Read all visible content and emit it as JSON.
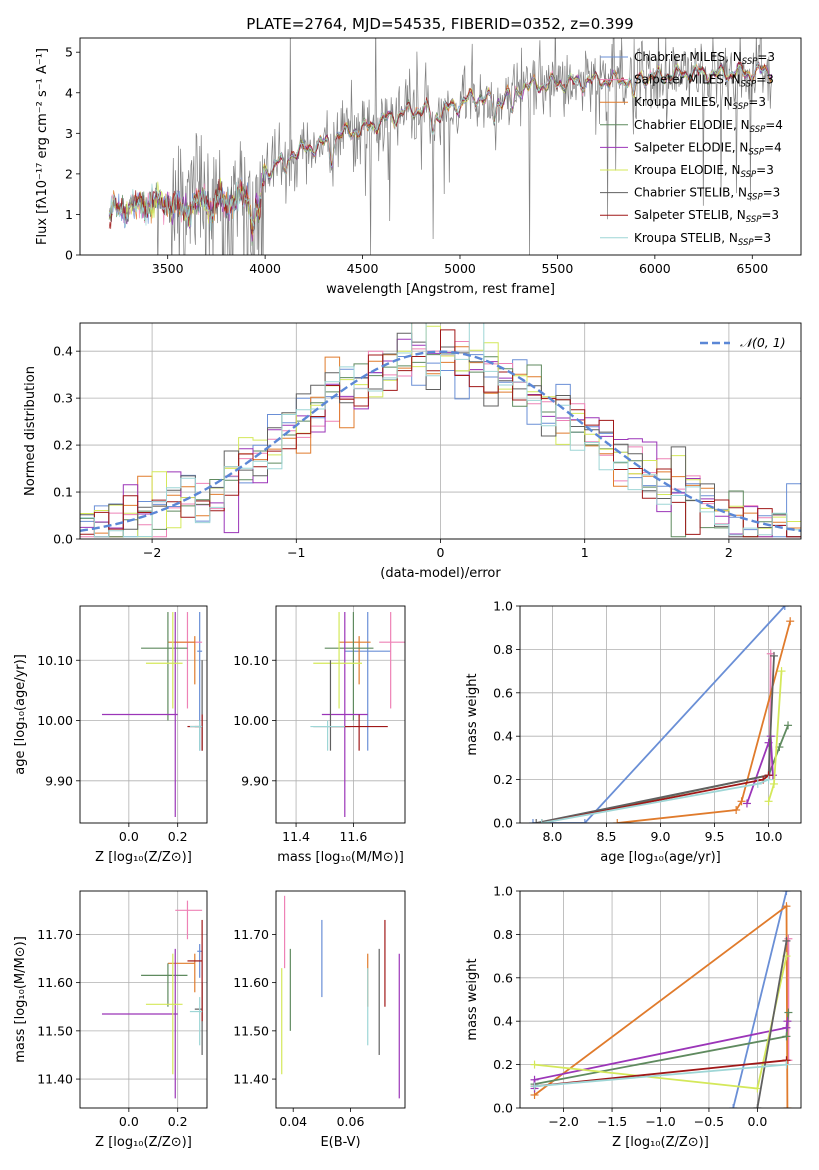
{
  "figure_title": "PLATE=2764, MJD=54535, FIBERID=0352, z=0.399",
  "colors": {
    "Chabrier MILES": "#6a8fd6",
    "Salpeter MILES": "#ee82b6",
    "Kroupa MILES": "#e07b2c",
    "Chabrier ELODIE": "#5f8a5f",
    "Salpeter ELODIE": "#9b35b8",
    "Kroupa ELODIE": "#d4e85a",
    "Chabrier STELIB": "#606060",
    "Salpeter STELIB": "#a01818",
    "Kroupa STELIB": "#9ed6d6",
    "data": "#808080",
    "gaussian": "#5b87d6"
  },
  "chart_data": [
    {
      "id": "spectrum",
      "type": "line",
      "title": "",
      "xlabel": "wavelength [Angstrom, rest frame]",
      "ylabel": "Flux [fλ10⁻¹⁷ erg cm⁻² s⁻¹ A⁻¹]",
      "xlim": [
        3050,
        6750
      ],
      "ylim": [
        0,
        5.35
      ],
      "xticks": [
        3500,
        4000,
        4500,
        5000,
        5500,
        6000,
        6500
      ],
      "yticks": [
        0,
        1,
        2,
        3,
        4,
        5
      ],
      "legend_placement": "top-right",
      "legend": [
        "Chabrier MILES, N_SSP=3",
        "Salpeter MILES, N_SSP=3",
        "Kroupa MILES, N_SSP=3",
        "Chabrier ELODIE, N_SSP=4",
        "Salpeter ELODIE, N_SSP=4",
        "Kroupa ELODIE, N_SSP=3",
        "Chabrier STELIB, N_SSP=3",
        "Salpeter STELIB, N_SSP=3",
        "Kroupa STELIB, N_SSP=3"
      ],
      "data_range": [
        3200,
        6600
      ],
      "continuum": [
        [
          3200,
          1.05
        ],
        [
          3300,
          1.2
        ],
        [
          3400,
          1.25
        ],
        [
          3500,
          1.3
        ],
        [
          3600,
          1.1
        ],
        [
          3700,
          1.45
        ],
        [
          3800,
          1.3
        ],
        [
          3900,
          1.4
        ],
        [
          3950,
          1.2
        ],
        [
          4000,
          2.0
        ],
        [
          4100,
          2.45
        ],
        [
          4200,
          2.6
        ],
        [
          4300,
          2.75
        ],
        [
          4400,
          3.0
        ],
        [
          4500,
          3.1
        ],
        [
          4600,
          3.3
        ],
        [
          4700,
          3.5
        ],
        [
          4800,
          3.6
        ],
        [
          4900,
          3.5
        ],
        [
          5000,
          3.75
        ],
        [
          5100,
          3.9
        ],
        [
          5200,
          3.8
        ],
        [
          5300,
          4.1
        ],
        [
          5400,
          4.2
        ],
        [
          5500,
          4.25
        ],
        [
          5600,
          4.25
        ],
        [
          5700,
          4.3
        ],
        [
          5800,
          4.3
        ],
        [
          5900,
          4.35
        ],
        [
          6000,
          4.4
        ],
        [
          6100,
          4.45
        ],
        [
          6200,
          4.5
        ],
        [
          6300,
          4.45
        ],
        [
          6400,
          4.5
        ],
        [
          6500,
          4.5
        ],
        [
          6600,
          4.55
        ]
      ]
    },
    {
      "id": "residuals",
      "type": "histogram",
      "xlabel": "(data-model)/error",
      "ylabel": "Normed distribution",
      "xlim": [
        -2.5,
        2.5
      ],
      "ylim": [
        0,
        0.46
      ],
      "xticks": [
        -2,
        -1,
        0,
        1,
        2
      ],
      "yticks": [
        0.0,
        0.1,
        0.2,
        0.3,
        0.4
      ],
      "grid": true,
      "legend_placement": "top-right",
      "legend": [
        "𝒩(0, 1)"
      ],
      "bin_width": 0.1
    },
    {
      "id": "age_vs_Z",
      "type": "errorbar",
      "xlabel": "Z [log₁₀(Z/Z⊙)]",
      "ylabel": "age  [log₁₀(age/yr)]",
      "xlim": [
        -0.2,
        0.32
      ],
      "ylim": [
        9.83,
        10.19
      ],
      "xticks": [
        0.0,
        0.2
      ],
      "yticks": [
        9.9,
        10.0,
        10.1
      ],
      "grid": true
    },
    {
      "id": "age_vs_mass",
      "type": "errorbar",
      "xlabel": "mass [log₁₀(M/M⊙)]",
      "ylabel": "",
      "xlim": [
        11.33,
        11.78
      ],
      "ylim": [
        9.83,
        10.19
      ],
      "xticks": [
        11.4,
        11.6
      ],
      "yticks": [
        9.9,
        10.0,
        10.1
      ],
      "grid": true
    },
    {
      "id": "massweight_vs_age",
      "type": "line",
      "xlabel": "age  [log₁₀(age/yr)]",
      "ylabel": "mass weight",
      "xlim": [
        7.7,
        10.3
      ],
      "ylim": [
        0,
        1.0
      ],
      "xticks": [
        8.0,
        8.5,
        9.0,
        9.5,
        10.0
      ],
      "yticks": [
        0.0,
        0.2,
        0.4,
        0.6,
        0.8,
        1.0
      ],
      "grid": true
    },
    {
      "id": "mass_vs_Z",
      "type": "errorbar",
      "xlabel": "Z [log₁₀(Z/Z⊙)]",
      "ylabel": "mass [log₁₀(M/M⊙)]",
      "xlim": [
        -0.2,
        0.32
      ],
      "ylim": [
        11.34,
        11.79
      ],
      "xticks": [
        0.0,
        0.2
      ],
      "yticks": [
        11.4,
        11.5,
        11.6,
        11.7
      ],
      "grid": true
    },
    {
      "id": "mass_vs_ebv",
      "type": "errorbar",
      "xlabel": "E(B-V)",
      "ylabel": "",
      "xlim": [
        0.034,
        0.079
      ],
      "ylim": [
        11.34,
        11.79
      ],
      "xticks": [
        0.04,
        0.06
      ],
      "yticks": [
        11.4,
        11.5,
        11.6,
        11.7
      ],
      "grid": false
    },
    {
      "id": "massweight_vs_Z",
      "type": "line",
      "xlabel": "Z [log₁₀(Z/Z⊙)]",
      "ylabel": "mass weight",
      "xlim": [
        -2.45,
        0.45
      ],
      "ylim": [
        0,
        1.0
      ],
      "xticks": [
        -2.0,
        -1.5,
        -1.0,
        -0.5,
        0.0
      ],
      "yticks": [
        0.0,
        0.2,
        0.4,
        0.6,
        0.8,
        1.0
      ],
      "grid": true
    }
  ],
  "models": [
    {
      "key": "Chabrier MILES",
      "Z": 0.29,
      "Zerr": [
        0.28,
        0.3
      ],
      "age": 10.115,
      "ageerr": [
        9.95,
        10.18
      ],
      "mass": 11.65,
      "masserr": [
        11.57,
        11.73
      ],
      "mass_t": [
        11.61,
        11.68
      ],
      "ebv": 0.05,
      "ebverr": [
        11.57,
        11.73
      ],
      "mw_age": [
        [
          7.82,
          0.0
        ],
        [
          8.3,
          0.0
        ],
        [
          10.15,
          1.0
        ]
      ],
      "mw_Z": [
        [
          -0.25,
          0.0
        ],
        [
          0.3,
          1.0
        ]
      ]
    },
    {
      "key": "Salpeter MILES",
      "Z": 0.24,
      "Zerr": [
        0.19,
        0.3
      ],
      "age": 10.13,
      "ageerr": [
        10.02,
        10.18
      ],
      "mass": 11.73,
      "masserr": [
        11.69,
        11.78
      ],
      "mass_t": [
        11.69,
        11.77
      ],
      "ebv": 0.037,
      "ebverr": [
        11.63,
        11.78
      ],
      "mw_age": [
        [
          10.01,
          0.22
        ],
        [
          10.02,
          0.78
        ]
      ],
      "mw_Z": [
        [
          0.32,
          0.22
        ],
        [
          0.32,
          0.78
        ]
      ]
    },
    {
      "key": "Kroupa MILES",
      "Z": 0.27,
      "Zerr": [
        0.16,
        0.27
      ],
      "age": 10.13,
      "ageerr": [
        10.06,
        10.14
      ],
      "mass": 11.62,
      "masserr": [
        11.55,
        11.66
      ],
      "mass_t": [
        11.58,
        11.66
      ],
      "ebv": 0.066,
      "ebverr": [
        11.55,
        11.66
      ],
      "mw_age": [
        [
          8.6,
          0.0
        ],
        [
          9.7,
          0.06
        ],
        [
          9.75,
          0.1
        ],
        [
          10.2,
          0.93
        ]
      ],
      "mw_Z": [
        [
          -2.3,
          0.06
        ],
        [
          0.3,
          0.93
        ],
        [
          0.31,
          0.0
        ]
      ]
    },
    {
      "key": "Chabrier ELODIE",
      "Z": 0.16,
      "Zerr": [
        0.05,
        0.24
      ],
      "age": 10.12,
      "ageerr": [
        10.0,
        10.18
      ],
      "mass": 11.6,
      "masserr": [
        11.5,
        11.67
      ],
      "mass_t": [
        11.55,
        11.64
      ],
      "ebv": 0.039,
      "ebverr": [
        11.5,
        11.67
      ],
      "mw_age": [
        [
          7.9,
          0.0
        ],
        [
          10.0,
          0.22
        ],
        [
          10.1,
          0.35
        ],
        [
          10.18,
          0.45
        ]
      ],
      "mw_Z": [
        [
          -2.3,
          0.11
        ],
        [
          0.3,
          0.33
        ],
        [
          0.32,
          0.44
        ]
      ]
    },
    {
      "key": "Salpeter ELODIE",
      "Z": 0.19,
      "Zerr": [
        -0.11,
        0.2
      ],
      "age": 10.01,
      "ageerr": [
        9.84,
        10.18
      ],
      "mass": 11.57,
      "masserr": [
        11.49,
        11.65
      ],
      "mass_t": [
        11.36,
        11.67
      ],
      "ebv": 0.077,
      "ebverr": [
        11.36,
        11.66
      ],
      "mw_age": [
        [
          9.8,
          0.09
        ],
        [
          10.0,
          0.37
        ],
        [
          10.02,
          0.4
        ],
        [
          10.04,
          0.22
        ]
      ],
      "mw_Z": [
        [
          -2.3,
          0.09
        ],
        [
          -2.3,
          0.13
        ],
        [
          0.3,
          0.37
        ],
        [
          0.31,
          0.4
        ]
      ]
    },
    {
      "key": "Kroupa ELODIE",
      "Z": 0.18,
      "Zerr": [
        0.07,
        0.22
      ],
      "age": 10.095,
      "ageerr": [
        10.02,
        10.18
      ],
      "mass": 11.55,
      "masserr": [
        11.46,
        11.63
      ],
      "mass_t": [
        11.41,
        11.66
      ],
      "ebv": 0.036,
      "ebverr": [
        11.41,
        11.63
      ],
      "mw_age": [
        [
          10.0,
          0.1
        ],
        [
          10.05,
          0.18
        ],
        [
          10.12,
          0.7
        ]
      ],
      "mw_Z": [
        [
          -2.3,
          0.2
        ],
        [
          0.0,
          0.09
        ],
        [
          0.3,
          0.7
        ]
      ]
    },
    {
      "key": "Chabrier STELIB",
      "Z": 0.3,
      "Zerr": [
        0.27,
        0.3
      ],
      "age": 9.99,
      "ageerr": [
        9.95,
        10.1
      ],
      "mass": 11.52,
      "masserr": [
        11.46,
        11.59
      ],
      "mass_t": [
        11.45,
        11.6
      ],
      "ebv": 0.07,
      "ebverr": [
        11.45,
        11.67
      ],
      "mw_age": [
        [
          7.85,
          0.0
        ],
        [
          10.0,
          0.22
        ],
        [
          10.05,
          0.77
        ]
      ],
      "mw_Z": [
        [
          0.0,
          0.0
        ],
        [
          0.3,
          0.77
        ]
      ]
    },
    {
      "key": "Salpeter STELIB",
      "Z": 0.3,
      "Zerr": [
        0.24,
        0.3
      ],
      "age": 9.99,
      "ageerr": [
        9.95,
        10.01
      ],
      "mass": 11.62,
      "masserr": [
        11.52,
        11.72
      ],
      "mass_t": [
        11.52,
        11.73
      ],
      "ebv": 0.072,
      "ebverr": [
        11.55,
        11.73
      ],
      "mw_age": [
        [
          7.9,
          0.0
        ],
        [
          9.95,
          0.2
        ],
        [
          10.0,
          0.22
        ]
      ],
      "mw_Z": [
        [
          -2.3,
          0.1
        ],
        [
          0.3,
          0.22
        ]
      ]
    },
    {
      "key": "Kroupa STELIB",
      "Z": 0.29,
      "Zerr": [
        0.25,
        0.3
      ],
      "age": 9.99,
      "ageerr": [
        9.95,
        10.0
      ],
      "mass": 11.51,
      "masserr": [
        11.45,
        11.57
      ],
      "mass_t": [
        11.47,
        11.57
      ],
      "ebv": 0.066,
      "ebverr": [
        11.47,
        11.63
      ],
      "mw_age": [
        [
          7.9,
          0.0
        ],
        [
          9.9,
          0.18
        ],
        [
          10.0,
          0.2
        ]
      ],
      "mw_Z": [
        [
          -2.3,
          0.1
        ],
        [
          0.3,
          0.2
        ]
      ]
    }
  ]
}
